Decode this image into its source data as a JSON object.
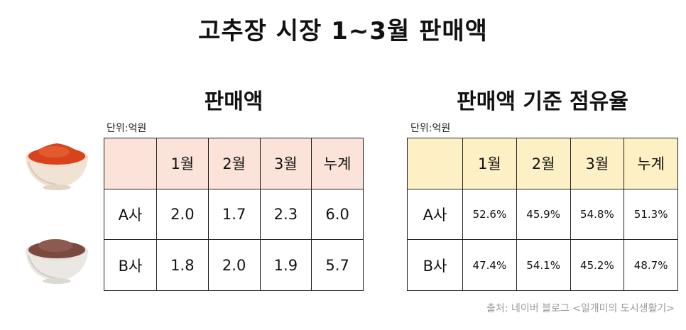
{
  "title": "고추장 시장 1~3월 판매액",
  "left": {
    "heading": "판매액",
    "unit": "단위:억원",
    "headers": [
      "",
      "1월",
      "2월",
      "3월",
      "누계"
    ],
    "rows": [
      {
        "label": "A사",
        "values": [
          "2.0",
          "1.7",
          "2.3",
          "6.0"
        ]
      },
      {
        "label": "B사",
        "values": [
          "1.8",
          "2.0",
          "1.9",
          "5.7"
        ]
      }
    ]
  },
  "right": {
    "heading": "판매액 기준 점유율",
    "unit": "단위:억원",
    "headers": [
      "",
      "1월",
      "2월",
      "3월",
      "누계"
    ],
    "rows": [
      {
        "label": "A사",
        "values": [
          "52.6%",
          "45.9%",
          "54.8%",
          "51.3%"
        ]
      },
      {
        "label": "B사",
        "values": [
          "47.4%",
          "54.1%",
          "45.2%",
          "48.7%"
        ]
      }
    ]
  },
  "source": "출처: 네이버 블로그 <일개미의 도시생활기>",
  "icons": [
    "red-pepper-powder-bowl-icon",
    "brown-powder-bowl-icon"
  ],
  "colors": {
    "left_header": "#fbe3d9",
    "right_header": "#fdf0c4"
  }
}
